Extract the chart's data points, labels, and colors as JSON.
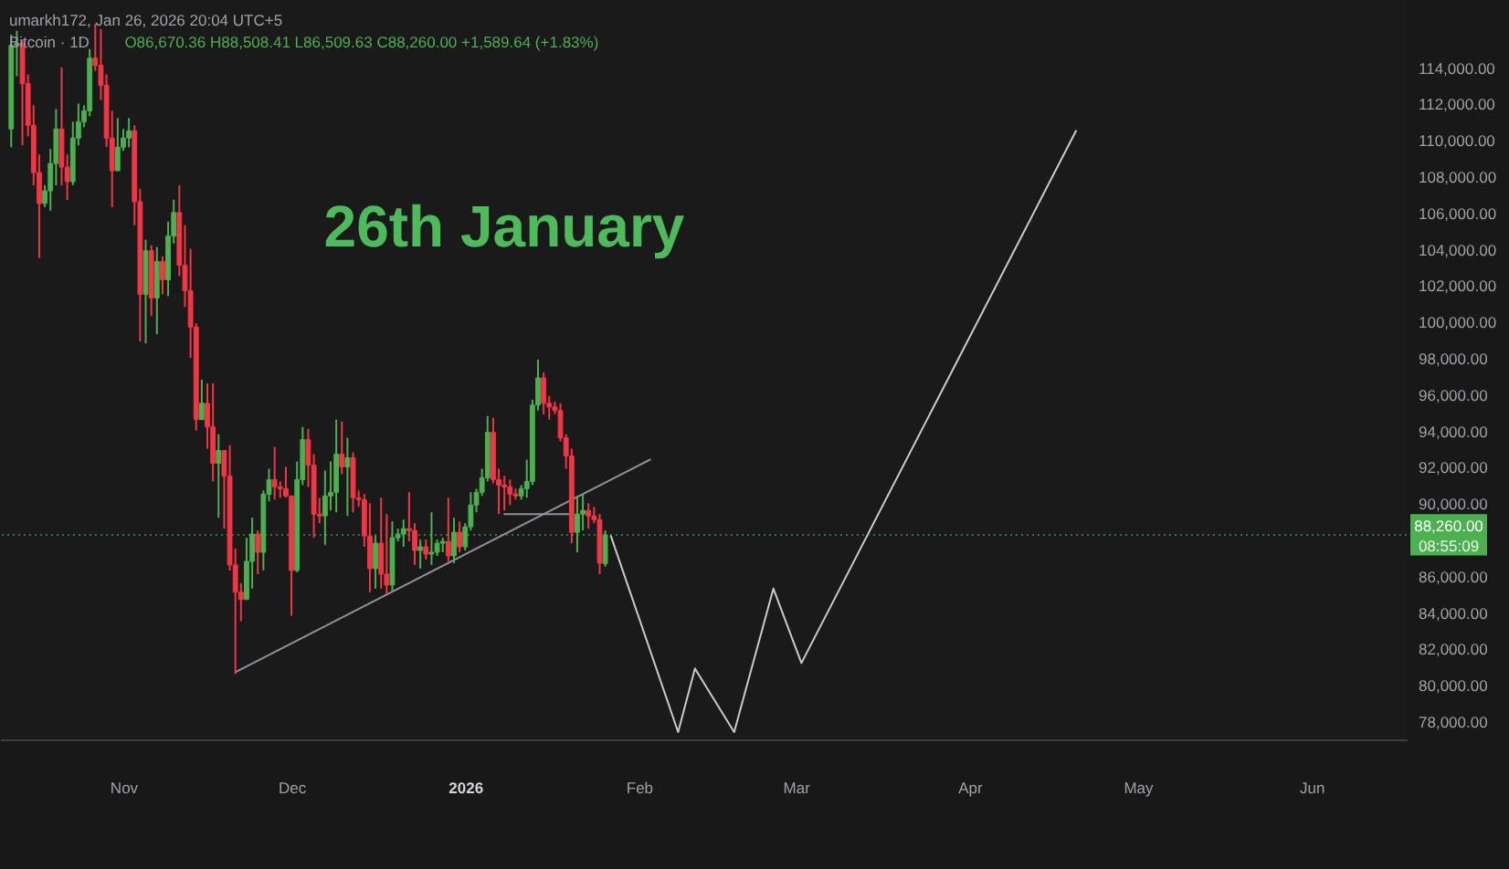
{
  "chart_data": {
    "type": "candlestick",
    "title": "Bitcoin · 1D",
    "annotations": [
      "umarkh172, Jan 26, 2026 20:04 UTC+5",
      "O86,670.36 H88,508.41 L86,509.63 C88,260.00 +1,589.64 (+1.83%)",
      "26th January",
      "08:55:09"
    ],
    "x": [
      "2025-10-12",
      "2025-10-13",
      "2025-10-14",
      "2025-10-15",
      "2025-10-16",
      "2025-10-17",
      "2025-10-18",
      "2025-10-19",
      "2025-10-20",
      "2025-10-21",
      "2025-10-22",
      "2025-10-23",
      "2025-10-24",
      "2025-10-25",
      "2025-10-26",
      "2025-10-27",
      "2025-10-28",
      "2025-10-29",
      "2025-10-30",
      "2025-10-31",
      "2025-11-01",
      "2025-11-02",
      "2025-11-03",
      "2025-11-04",
      "2025-11-05",
      "2025-11-06",
      "2025-11-07",
      "2025-11-08",
      "2025-11-09",
      "2025-11-10",
      "2025-11-11",
      "2025-11-12",
      "2025-11-13",
      "2025-11-14",
      "2025-11-15",
      "2025-11-16",
      "2025-11-17",
      "2025-11-18",
      "2025-11-19",
      "2025-11-20",
      "2025-11-21",
      "2025-11-22",
      "2025-11-23",
      "2025-11-24",
      "2025-11-25",
      "2025-11-26",
      "2025-11-27",
      "2025-11-28",
      "2025-11-29",
      "2025-11-30",
      "2025-12-01",
      "2025-12-02",
      "2025-12-03",
      "2025-12-04",
      "2025-12-05",
      "2025-12-06",
      "2025-12-07",
      "2025-12-08",
      "2025-12-09",
      "2025-12-10",
      "2025-12-11",
      "2025-12-12",
      "2025-12-13",
      "2025-12-14",
      "2025-12-15",
      "2025-12-16",
      "2025-12-17",
      "2025-12-18",
      "2025-12-19",
      "2025-12-20",
      "2025-12-21",
      "2025-12-22",
      "2025-12-23",
      "2025-12-24",
      "2025-12-25",
      "2025-12-26",
      "2025-12-27",
      "2025-12-28",
      "2025-12-29",
      "2025-12-30",
      "2025-12-31",
      "2026-01-01",
      "2026-01-02",
      "2026-01-03",
      "2026-01-04",
      "2026-01-05",
      "2026-01-06",
      "2026-01-07",
      "2026-01-08",
      "2026-01-09",
      "2026-01-10",
      "2026-01-11",
      "2026-01-12",
      "2026-01-13",
      "2026-01-14",
      "2026-01-15",
      "2026-01-16",
      "2026-01-17",
      "2026-01-18",
      "2026-01-19",
      "2026-01-20",
      "2026-01-21",
      "2026-01-22",
      "2026-01-23",
      "2026-01-24",
      "2026-01-25",
      "2026-01-26"
    ],
    "ohlc": [
      [
        110600,
        115800,
        109600,
        115200
      ],
      [
        115200,
        116000,
        113500,
        115300
      ],
      [
        115300,
        115500,
        109700,
        113100
      ],
      [
        113100,
        113600,
        110200,
        110800
      ],
      [
        110800,
        111900,
        107500,
        108200
      ],
      [
        108200,
        109200,
        103500,
        106500
      ],
      [
        106500,
        107500,
        106300,
        107200
      ],
      [
        107200,
        109500,
        106100,
        108700
      ],
      [
        108700,
        111700,
        107500,
        110600
      ],
      [
        110600,
        114000,
        107500,
        108500
      ],
      [
        108500,
        109200,
        106700,
        107700
      ],
      [
        107700,
        111000,
        107500,
        110100
      ],
      [
        110100,
        112000,
        109700,
        111000
      ],
      [
        111000,
        111900,
        110700,
        111600
      ],
      [
        111600,
        115000,
        111300,
        114500
      ],
      [
        114500,
        116400,
        113800,
        114100
      ],
      [
        114100,
        116100,
        112200,
        113000
      ],
      [
        113000,
        113600,
        109600,
        110100
      ],
      [
        110100,
        111600,
        106300,
        108300
      ],
      [
        108300,
        111200,
        108300,
        109600
      ],
      [
        109600,
        110600,
        109400,
        110100
      ],
      [
        110100,
        111200,
        109600,
        110500
      ],
      [
        110500,
        110800,
        105300,
        106600
      ],
      [
        106600,
        107300,
        98900,
        101500
      ],
      [
        101500,
        104500,
        98800,
        103900
      ],
      [
        103900,
        104200,
        100300,
        101300
      ],
      [
        101300,
        104100,
        99300,
        103300
      ],
      [
        103300,
        103600,
        101500,
        102300
      ],
      [
        102300,
        105500,
        101400,
        104700
      ],
      [
        104700,
        106700,
        104300,
        106000
      ],
      [
        106000,
        107500,
        102500,
        103100
      ],
      [
        103100,
        105300,
        100800,
        101700
      ],
      [
        101700,
        104000,
        98000,
        99700
      ],
      [
        99700,
        99900,
        94000,
        94600
      ],
      [
        94600,
        96800,
        94600,
        95500
      ],
      [
        95500,
        96600,
        93000,
        94200
      ],
      [
        94200,
        96600,
        91200,
        92200
      ],
      [
        92200,
        93800,
        89200,
        92900
      ],
      [
        92900,
        92900,
        88600,
        91500
      ],
      [
        91500,
        93200,
        86300,
        86600
      ],
      [
        86600,
        87500,
        80600,
        85100
      ],
      [
        85100,
        85600,
        83500,
        84700
      ],
      [
        84700,
        88100,
        84700,
        86800
      ],
      [
        86800,
        89200,
        85300,
        88300
      ],
      [
        88300,
        88500,
        86100,
        87300
      ],
      [
        87300,
        90700,
        86300,
        90500
      ],
      [
        90500,
        91900,
        90100,
        91300
      ],
      [
        91300,
        93100,
        90200,
        90900
      ],
      [
        90900,
        91200,
        90300,
        90800
      ],
      [
        90800,
        92000,
        90300,
        90400
      ],
      [
        90400,
        90400,
        83800,
        86300
      ],
      [
        86300,
        92300,
        86200,
        91300
      ],
      [
        91300,
        94200,
        91000,
        93500
      ],
      [
        93500,
        94100,
        90900,
        92100
      ],
      [
        92100,
        92700,
        88100,
        89400
      ],
      [
        89400,
        90300,
        88900,
        89300
      ],
      [
        89300,
        91800,
        87700,
        90400
      ],
      [
        90400,
        92300,
        89600,
        90600
      ],
      [
        90600,
        94600,
        89500,
        92700
      ],
      [
        92700,
        94500,
        91600,
        92000
      ],
      [
        92000,
        93600,
        89300,
        92500
      ],
      [
        92500,
        92800,
        89500,
        90300
      ],
      [
        90300,
        90700,
        89800,
        90200
      ],
      [
        90200,
        90500,
        87600,
        88200
      ],
      [
        88200,
        90000,
        85100,
        86400
      ],
      [
        86400,
        88200,
        85300,
        87800
      ],
      [
        87800,
        90300,
        85300,
        86100
      ],
      [
        86100,
        89400,
        85000,
        85500
      ],
      [
        85500,
        89000,
        85100,
        88100
      ],
      [
        88100,
        88600,
        87900,
        88300
      ],
      [
        88300,
        89100,
        87600,
        88600
      ],
      [
        88600,
        90600,
        87900,
        88500
      ],
      [
        88500,
        88900,
        86600,
        87400
      ],
      [
        87400,
        88000,
        86400,
        87600
      ],
      [
        87600,
        88000,
        86900,
        87200
      ],
      [
        87200,
        89500,
        86600,
        87300
      ],
      [
        87300,
        88000,
        87100,
        87800
      ],
      [
        87800,
        88100,
        87300,
        87900
      ],
      [
        87900,
        90300,
        86800,
        87100
      ],
      [
        87100,
        89200,
        86700,
        88400
      ],
      [
        88400,
        89000,
        87300,
        87600
      ],
      [
        87600,
        88900,
        87400,
        88700
      ],
      [
        88700,
        90600,
        88500,
        89900
      ],
      [
        89900,
        90800,
        89500,
        90600
      ],
      [
        90600,
        91900,
        90400,
        91400
      ],
      [
        91400,
        94800,
        91200,
        93900
      ],
      [
        93900,
        94700,
        91100,
        91300
      ],
      [
        91300,
        91900,
        89400,
        91000
      ],
      [
        91000,
        91500,
        89600,
        90900
      ],
      [
        90900,
        91300,
        89900,
        90500
      ],
      [
        90500,
        90800,
        90200,
        90400
      ],
      [
        90400,
        91000,
        90200,
        90800
      ],
      [
        90800,
        92400,
        90300,
        91200
      ],
      [
        91200,
        95700,
        91000,
        95400
      ],
      [
        95400,
        97900,
        95100,
        96900
      ],
      [
        96900,
        97200,
        94900,
        95500
      ],
      [
        95500,
        95900,
        94600,
        95300
      ],
      [
        95300,
        95600,
        94900,
        95100
      ],
      [
        95100,
        95500,
        93400,
        93600
      ],
      [
        93600,
        93800,
        91900,
        92600
      ],
      [
        92600,
        93000,
        87800,
        88400
      ],
      [
        88400,
        90400,
        87300,
        89400
      ],
      [
        89400,
        90500,
        88500,
        89600
      ],
      [
        89600,
        90000,
        88600,
        89300
      ],
      [
        89300,
        89800,
        88900,
        89100
      ],
      [
        89100,
        89400,
        86100,
        86700
      ],
      [
        86670.36,
        88508.41,
        86509.63,
        88260.0
      ]
    ],
    "colors": [
      "#4caf50",
      "#4caf50",
      "#f23645",
      "#f23645",
      "#f23645",
      "#f23645",
      "#4caf50",
      "#4caf50",
      "#4caf50",
      "#f23645",
      "#f23645",
      "#4caf50",
      "#4caf50",
      "#4caf50",
      "#4caf50",
      "#f23645",
      "#f23645",
      "#f23645",
      "#f23645",
      "#4caf50",
      "#4caf50",
      "#4caf50",
      "#f23645",
      "#f23645",
      "#4caf50",
      "#f23645",
      "#4caf50",
      "#f23645",
      "#4caf50",
      "#4caf50",
      "#f23645",
      "#f23645",
      "#f23645",
      "#f23645",
      "#4caf50",
      "#f23645",
      "#f23645",
      "#4caf50",
      "#f23645",
      "#f23645",
      "#f23645",
      "#f23645",
      "#4caf50",
      "#4caf50",
      "#f23645",
      "#4caf50",
      "#4caf50",
      "#f23645",
      "#f23645",
      "#f23645",
      "#f23645",
      "#4caf50",
      "#4caf50",
      "#f23645",
      "#f23645",
      "#f23645",
      "#4caf50",
      "#4caf50",
      "#4caf50",
      "#f23645",
      "#4caf50",
      "#f23645",
      "#f23645",
      "#f23645",
      "#f23645",
      "#4caf50",
      "#f23645",
      "#f23645",
      "#4caf50",
      "#4caf50",
      "#4caf50",
      "#f23645",
      "#f23645",
      "#4caf50",
      "#f23645",
      "#4caf50",
      "#4caf50",
      "#4caf50",
      "#f23645",
      "#4caf50",
      "#f23645",
      "#4caf50",
      "#4caf50",
      "#4caf50",
      "#4caf50",
      "#4caf50",
      "#f23645",
      "#f23645",
      "#f23645",
      "#f23645",
      "#f23645",
      "#4caf50",
      "#4caf50",
      "#4caf50",
      "#4caf50",
      "#f23645",
      "#f23645",
      "#f23645",
      "#f23645",
      "#f23645",
      "#f23645",
      "#4caf50",
      "#4caf50",
      "#f23645",
      "#f23645",
      "#f23645",
      "#4caf50"
    ],
    "series": [
      {
        "type": "line",
        "color": "#8f929a",
        "x": [
          "2025-11-21",
          "2026-02-03"
        ],
        "values": [
          80700,
          92400
        ]
      },
      {
        "type": "line",
        "color": "#8f929a",
        "x": [
          "2026-01-08",
          "2026-01-20"
        ],
        "values": [
          89400,
          89400
        ]
      },
      {
        "type": "line",
        "color": "#c8cad0",
        "x": [
          "2026-01-27",
          "2026-02-08",
          "2026-02-11",
          "2026-02-18",
          "2026-02-25",
          "2026-03-02",
          "2026-04-20"
        ],
        "values": [
          88200,
          77400,
          80900,
          77400,
          85300,
          81200,
          110500
        ]
      }
    ],
    "ref_lines": [
      {
        "axis": "y",
        "value": 88260,
        "label": "88,260.00",
        "color": "#4caf50",
        "line_style": "dotted"
      }
    ],
    "xlim": [
      "2025-10-10",
      "2026-06-18"
    ],
    "xticks": [
      {
        "value": "2025-11-01",
        "label": "Nov"
      },
      {
        "value": "2025-12-01",
        "label": "Dec"
      },
      {
        "value": "2026-01-01",
        "label": "2026"
      },
      {
        "value": "2026-02-01",
        "label": "Feb"
      },
      {
        "value": "2026-03-01",
        "label": "Mar"
      },
      {
        "value": "2026-04-01",
        "label": "Apr"
      },
      {
        "value": "2026-05-01",
        "label": "May"
      },
      {
        "value": "2026-06-01",
        "label": "Jun"
      }
    ],
    "ylim": [
      77000,
      117700
    ],
    "yticks": [
      {
        "value": 78000,
        "label": "78,000.00"
      },
      {
        "value": 80000,
        "label": "80,000.00"
      },
      {
        "value": 82000,
        "label": "82,000.00"
      },
      {
        "value": 84000,
        "label": "84,000.00"
      },
      {
        "value": 86000,
        "label": "86,000.00"
      },
      {
        "value": 90000,
        "label": "90,000.00"
      },
      {
        "value": 92000,
        "label": "92,000.00"
      },
      {
        "value": 94000,
        "label": "94,000.00"
      },
      {
        "value": 96000,
        "label": "96,000.00"
      },
      {
        "value": 98000,
        "label": "98,000.00"
      },
      {
        "value": 100000,
        "label": "100,000.00"
      },
      {
        "value": 102000,
        "label": "102,000.00"
      },
      {
        "value": 104000,
        "label": "104,000.00"
      },
      {
        "value": 106000,
        "label": "106,000.00"
      },
      {
        "value": 108000,
        "label": "108,000.00"
      },
      {
        "value": 110000,
        "label": "110,000.00"
      },
      {
        "value": 112000,
        "label": "112,000.00"
      },
      {
        "value": 114000,
        "label": "114,000.00"
      }
    ]
  }
}
